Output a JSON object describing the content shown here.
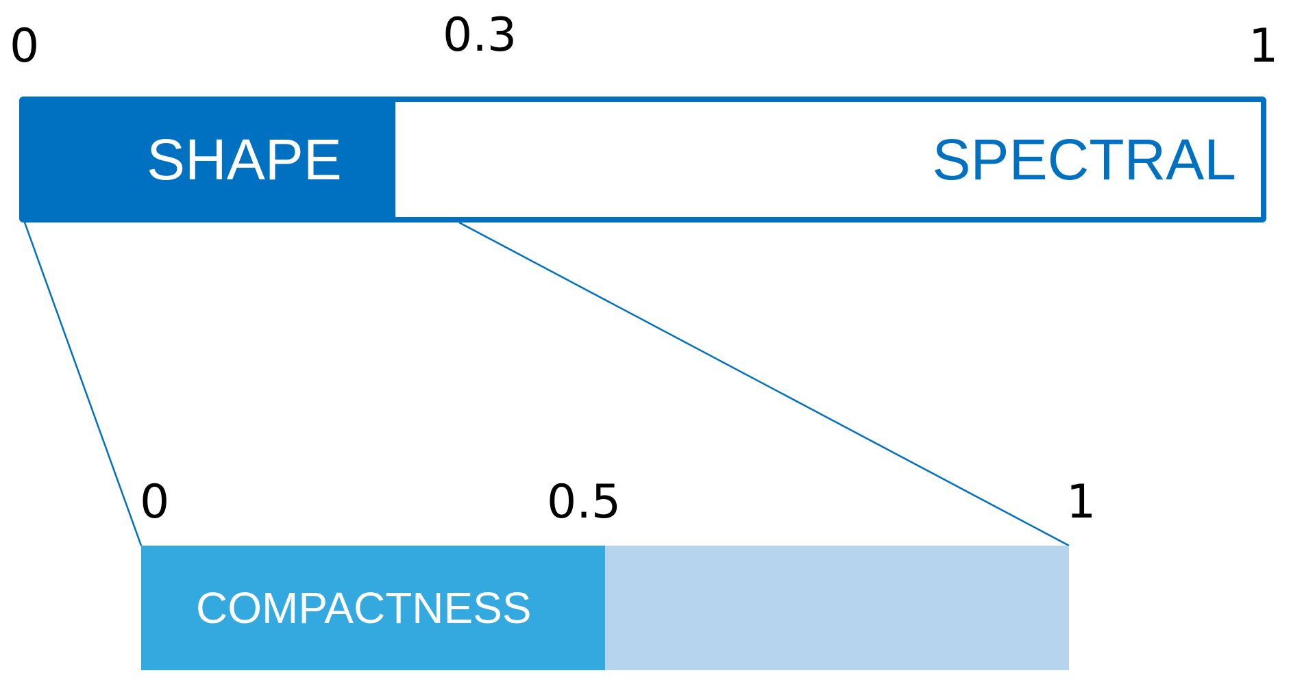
{
  "top_scale": {
    "ticks": [
      {
        "value": 0,
        "label": "0"
      },
      {
        "value": 0.3,
        "label": "0.3"
      },
      {
        "value": 1,
        "label": "1"
      }
    ],
    "split": 0.3,
    "segments": {
      "left": "SHAPE",
      "right": "SPECTRAL"
    }
  },
  "bottom_scale": {
    "ticks": [
      {
        "value": 0,
        "label": "0"
      },
      {
        "value": 0.5,
        "label": "0.5"
      },
      {
        "value": 1,
        "label": "1"
      }
    ],
    "split": 0.5,
    "segments": {
      "left": "COMPACTNESS",
      "right": ""
    }
  },
  "colors": {
    "dark_blue": "#0070C0",
    "light_blue": "#33A9DF",
    "pale_blue": "#B6D4ED",
    "text": "#000000"
  }
}
